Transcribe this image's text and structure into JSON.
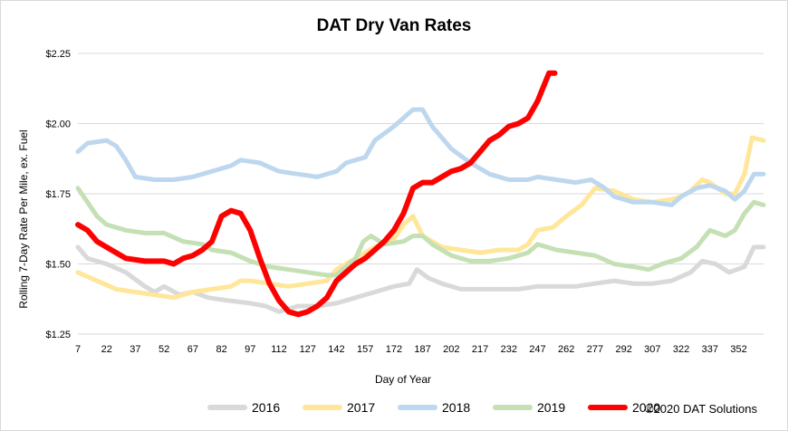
{
  "chart_data": {
    "type": "line",
    "title": "DAT Dry Van Rates",
    "xlabel": "Day of Year",
    "ylabel": "Rolling 7-Day Rate Per Mile, ex. Fuel",
    "xlim": [
      7,
      365
    ],
    "ylim": [
      1.25,
      2.25
    ],
    "x_ticks": [
      7,
      22,
      37,
      52,
      67,
      82,
      97,
      112,
      127,
      142,
      157,
      172,
      187,
      202,
      217,
      232,
      247,
      262,
      277,
      292,
      307,
      322,
      337,
      352
    ],
    "y_ticks": [
      {
        "value": 1.25,
        "label": "$1.25"
      },
      {
        "value": 1.5,
        "label": "$1.50"
      },
      {
        "value": 1.75,
        "label": "$1.75"
      },
      {
        "value": 2.0,
        "label": "$2.00"
      },
      {
        "value": 2.25,
        "label": "$2.25"
      }
    ],
    "grid": "horizontal",
    "legend_position": "bottom",
    "credit": "©2020 DAT Solutions",
    "series": [
      {
        "name": "2016",
        "color": "#d9d9d9",
        "points": [
          [
            7,
            1.56
          ],
          [
            12,
            1.52
          ],
          [
            22,
            1.5
          ],
          [
            32,
            1.47
          ],
          [
            42,
            1.42
          ],
          [
            47,
            1.4
          ],
          [
            52,
            1.42
          ],
          [
            60,
            1.39
          ],
          [
            67,
            1.4
          ],
          [
            75,
            1.38
          ],
          [
            85,
            1.37
          ],
          [
            97,
            1.36
          ],
          [
            105,
            1.35
          ],
          [
            112,
            1.33
          ],
          [
            122,
            1.35
          ],
          [
            132,
            1.35
          ],
          [
            142,
            1.36
          ],
          [
            152,
            1.38
          ],
          [
            162,
            1.4
          ],
          [
            172,
            1.42
          ],
          [
            180,
            1.43
          ],
          [
            184,
            1.48
          ],
          [
            190,
            1.45
          ],
          [
            197,
            1.43
          ],
          [
            207,
            1.41
          ],
          [
            217,
            1.41
          ],
          [
            227,
            1.41
          ],
          [
            237,
            1.41
          ],
          [
            247,
            1.42
          ],
          [
            257,
            1.42
          ],
          [
            267,
            1.42
          ],
          [
            277,
            1.43
          ],
          [
            287,
            1.44
          ],
          [
            297,
            1.43
          ],
          [
            307,
            1.43
          ],
          [
            317,
            1.44
          ],
          [
            327,
            1.47
          ],
          [
            333,
            1.51
          ],
          [
            340,
            1.5
          ],
          [
            347,
            1.47
          ],
          [
            355,
            1.49
          ],
          [
            360,
            1.56
          ],
          [
            365,
            1.56
          ]
        ]
      },
      {
        "name": "2017",
        "color": "#ffe699",
        "points": [
          [
            7,
            1.47
          ],
          [
            17,
            1.44
          ],
          [
            27,
            1.41
          ],
          [
            37,
            1.4
          ],
          [
            47,
            1.39
          ],
          [
            57,
            1.38
          ],
          [
            67,
            1.4
          ],
          [
            77,
            1.41
          ],
          [
            87,
            1.42
          ],
          [
            92,
            1.44
          ],
          [
            97,
            1.44
          ],
          [
            107,
            1.43
          ],
          [
            117,
            1.42
          ],
          [
            127,
            1.43
          ],
          [
            137,
            1.44
          ],
          [
            142,
            1.48
          ],
          [
            152,
            1.52
          ],
          [
            162,
            1.56
          ],
          [
            172,
            1.59
          ],
          [
            177,
            1.64
          ],
          [
            182,
            1.67
          ],
          [
            187,
            1.6
          ],
          [
            197,
            1.56
          ],
          [
            207,
            1.55
          ],
          [
            217,
            1.54
          ],
          [
            227,
            1.55
          ],
          [
            237,
            1.55
          ],
          [
            242,
            1.57
          ],
          [
            247,
            1.62
          ],
          [
            255,
            1.63
          ],
          [
            262,
            1.67
          ],
          [
            270,
            1.71
          ],
          [
            277,
            1.77
          ],
          [
            287,
            1.76
          ],
          [
            297,
            1.73
          ],
          [
            307,
            1.72
          ],
          [
            317,
            1.73
          ],
          [
            322,
            1.74
          ],
          [
            327,
            1.76
          ],
          [
            333,
            1.8
          ],
          [
            337,
            1.79
          ],
          [
            345,
            1.75
          ],
          [
            350,
            1.75
          ],
          [
            355,
            1.82
          ],
          [
            359,
            1.95
          ],
          [
            365,
            1.94
          ]
        ]
      },
      {
        "name": "2018",
        "color": "#bdd7ee",
        "points": [
          [
            7,
            1.9
          ],
          [
            12,
            1.93
          ],
          [
            22,
            1.94
          ],
          [
            27,
            1.92
          ],
          [
            32,
            1.87
          ],
          [
            37,
            1.81
          ],
          [
            47,
            1.8
          ],
          [
            57,
            1.8
          ],
          [
            67,
            1.81
          ],
          [
            77,
            1.83
          ],
          [
            87,
            1.85
          ],
          [
            92,
            1.87
          ],
          [
            102,
            1.86
          ],
          [
            112,
            1.83
          ],
          [
            122,
            1.82
          ],
          [
            132,
            1.81
          ],
          [
            142,
            1.83
          ],
          [
            147,
            1.86
          ],
          [
            157,
            1.88
          ],
          [
            162,
            1.94
          ],
          [
            172,
            1.99
          ],
          [
            182,
            2.05
          ],
          [
            187,
            2.05
          ],
          [
            192,
            1.99
          ],
          [
            202,
            1.91
          ],
          [
            212,
            1.86
          ],
          [
            222,
            1.82
          ],
          [
            232,
            1.8
          ],
          [
            242,
            1.8
          ],
          [
            247,
            1.81
          ],
          [
            257,
            1.8
          ],
          [
            267,
            1.79
          ],
          [
            275,
            1.8
          ],
          [
            282,
            1.77
          ],
          [
            287,
            1.74
          ],
          [
            297,
            1.72
          ],
          [
            307,
            1.72
          ],
          [
            317,
            1.71
          ],
          [
            322,
            1.74
          ],
          [
            330,
            1.77
          ],
          [
            337,
            1.78
          ],
          [
            345,
            1.76
          ],
          [
            350,
            1.73
          ],
          [
            355,
            1.76
          ],
          [
            360,
            1.82
          ],
          [
            365,
            1.82
          ]
        ]
      },
      {
        "name": "2019",
        "color": "#c5e0b4",
        "points": [
          [
            7,
            1.77
          ],
          [
            12,
            1.72
          ],
          [
            17,
            1.67
          ],
          [
            22,
            1.64
          ],
          [
            32,
            1.62
          ],
          [
            42,
            1.61
          ],
          [
            52,
            1.61
          ],
          [
            62,
            1.58
          ],
          [
            72,
            1.57
          ],
          [
            77,
            1.55
          ],
          [
            87,
            1.54
          ],
          [
            97,
            1.51
          ],
          [
            107,
            1.49
          ],
          [
            117,
            1.48
          ],
          [
            127,
            1.47
          ],
          [
            137,
            1.46
          ],
          [
            142,
            1.46
          ],
          [
            147,
            1.49
          ],
          [
            152,
            1.52
          ],
          [
            156,
            1.58
          ],
          [
            160,
            1.6
          ],
          [
            167,
            1.57
          ],
          [
            177,
            1.58
          ],
          [
            182,
            1.6
          ],
          [
            187,
            1.6
          ],
          [
            192,
            1.57
          ],
          [
            202,
            1.53
          ],
          [
            212,
            1.51
          ],
          [
            222,
            1.51
          ],
          [
            232,
            1.52
          ],
          [
            242,
            1.54
          ],
          [
            247,
            1.57
          ],
          [
            257,
            1.55
          ],
          [
            267,
            1.54
          ],
          [
            277,
            1.53
          ],
          [
            287,
            1.5
          ],
          [
            297,
            1.49
          ],
          [
            305,
            1.48
          ],
          [
            312,
            1.5
          ],
          [
            322,
            1.52
          ],
          [
            330,
            1.56
          ],
          [
            337,
            1.62
          ],
          [
            345,
            1.6
          ],
          [
            350,
            1.62
          ],
          [
            355,
            1.68
          ],
          [
            360,
            1.72
          ],
          [
            365,
            1.71
          ]
        ]
      },
      {
        "name": "2020",
        "color": "#ff0000",
        "points": [
          [
            7,
            1.64
          ],
          [
            12,
            1.62
          ],
          [
            17,
            1.58
          ],
          [
            27,
            1.54
          ],
          [
            32,
            1.52
          ],
          [
            42,
            1.51
          ],
          [
            52,
            1.51
          ],
          [
            57,
            1.5
          ],
          [
            62,
            1.52
          ],
          [
            67,
            1.53
          ],
          [
            72,
            1.55
          ],
          [
            77,
            1.58
          ],
          [
            82,
            1.67
          ],
          [
            87,
            1.69
          ],
          [
            92,
            1.68
          ],
          [
            97,
            1.62
          ],
          [
            102,
            1.52
          ],
          [
            107,
            1.43
          ],
          [
            112,
            1.37
          ],
          [
            117,
            1.33
          ],
          [
            122,
            1.32
          ],
          [
            127,
            1.33
          ],
          [
            132,
            1.35
          ],
          [
            137,
            1.38
          ],
          [
            142,
            1.44
          ],
          [
            147,
            1.47
          ],
          [
            152,
            1.5
          ],
          [
            157,
            1.52
          ],
          [
            162,
            1.55
          ],
          [
            167,
            1.58
          ],
          [
            172,
            1.62
          ],
          [
            177,
            1.68
          ],
          [
            182,
            1.77
          ],
          [
            187,
            1.79
          ],
          [
            192,
            1.79
          ],
          [
            197,
            1.81
          ],
          [
            202,
            1.83
          ],
          [
            207,
            1.84
          ],
          [
            212,
            1.86
          ],
          [
            217,
            1.9
          ],
          [
            222,
            1.94
          ],
          [
            227,
            1.96
          ],
          [
            232,
            1.99
          ],
          [
            237,
            2.0
          ],
          [
            242,
            2.02
          ],
          [
            247,
            2.08
          ],
          [
            250,
            2.13
          ],
          [
            253,
            2.18
          ],
          [
            256,
            2.18
          ]
        ]
      }
    ]
  }
}
